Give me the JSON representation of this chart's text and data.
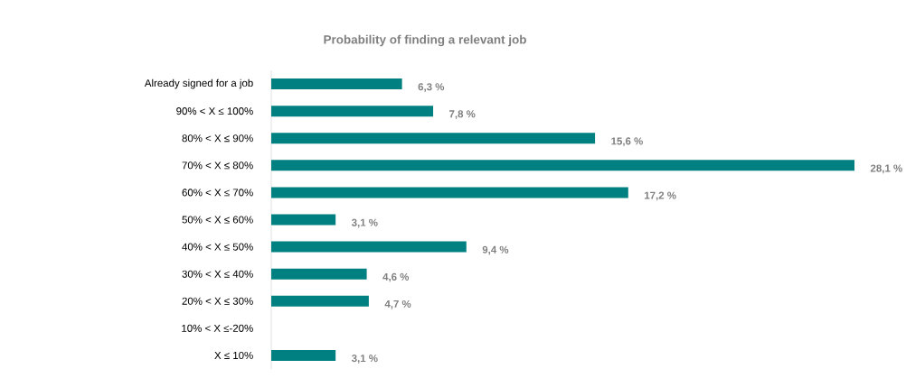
{
  "chart_data": {
    "type": "bar",
    "orientation": "horizontal",
    "title": "Probability of finding a relevant job",
    "categories": [
      "Already signed for a job",
      "90% < X ≤ 100%",
      "80% < X ≤ 90%",
      "70% < X ≤ 80%",
      "60% < X ≤ 70%",
      "50% < X ≤ 60%",
      "40% < X ≤ 50%",
      "30% < X ≤ 40%",
      "20% < X ≤ 30%",
      "10% < X ≤-20%",
      "X ≤ 10%"
    ],
    "values": [
      6.3,
      7.8,
      15.6,
      28.1,
      17.2,
      3.1,
      9.4,
      4.6,
      4.7,
      null,
      3.1
    ],
    "value_labels": [
      "6,3 %",
      "7,8 %",
      "15,6 %",
      "28,1 %",
      "17,2 %",
      "3,1 %",
      "9,4 %",
      "4,6 %",
      "4,7 %",
      null,
      "3,1 %"
    ],
    "color": "#008080"
  }
}
